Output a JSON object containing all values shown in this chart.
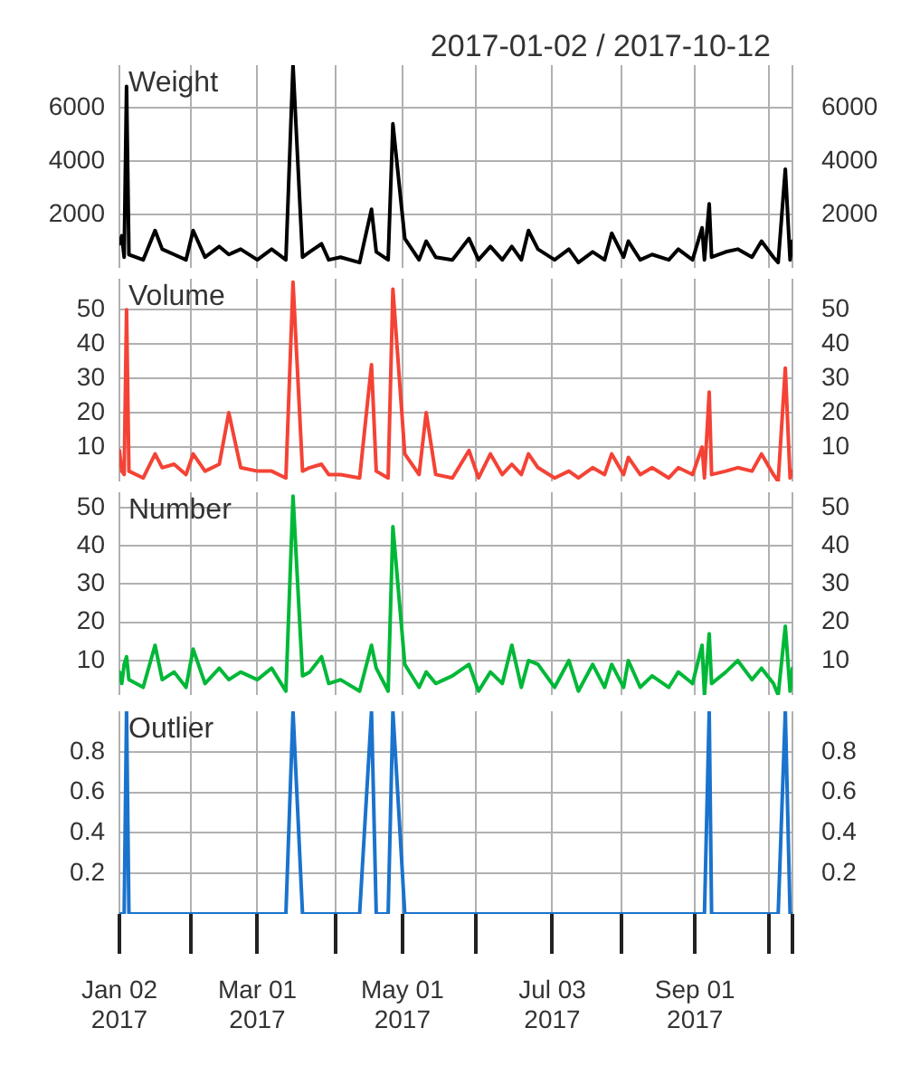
{
  "chart_data": [
    {
      "type": "line",
      "title": "2017-01-02 / 2017-10-12",
      "tick_labels": "y",
      "grid": true,
      "legend": false,
      "marker": "none",
      "x": [
        "2017-01-02",
        "2017-01-03",
        "2017-01-04",
        "2017-01-05",
        "2017-01-06",
        "2017-01-12",
        "2017-01-17",
        "2017-01-20",
        "2017-01-25",
        "2017-01-30",
        "2017-02-02",
        "2017-02-07",
        "2017-02-13",
        "2017-02-17",
        "2017-02-22",
        "2017-03-01",
        "2017-03-07",
        "2017-03-13",
        "2017-03-16",
        "2017-03-20",
        "2017-03-23",
        "2017-03-28",
        "2017-03-31",
        "2017-04-05",
        "2017-04-13",
        "2017-04-18",
        "2017-04-20",
        "2017-04-25",
        "2017-04-27",
        "2017-05-02",
        "2017-05-08",
        "2017-05-11",
        "2017-05-15",
        "2017-05-22",
        "2017-05-29",
        "2017-06-02",
        "2017-06-07",
        "2017-06-12",
        "2017-06-16",
        "2017-06-20",
        "2017-06-23",
        "2017-06-27",
        "2017-07-04",
        "2017-07-10",
        "2017-07-14",
        "2017-07-20",
        "2017-07-25",
        "2017-07-28",
        "2017-08-02",
        "2017-08-04",
        "2017-08-09",
        "2017-08-14",
        "2017-08-21",
        "2017-08-25",
        "2017-08-31",
        "2017-09-04",
        "2017-09-05",
        "2017-09-07",
        "2017-09-08",
        "2017-09-14",
        "2017-09-19",
        "2017-09-25",
        "2017-09-29",
        "2017-10-04",
        "2017-10-06",
        "2017-10-09",
        "2017-10-11",
        "2017-10-12"
      ],
      "series": [
        {
          "name": "Weight",
          "color": "#000000",
          "values": [
            900,
            1200,
            400,
            6800,
            500,
            300,
            1400,
            700,
            500,
            300,
            1400,
            400,
            800,
            500,
            700,
            300,
            700,
            300,
            7600,
            400,
            600,
            900,
            300,
            400,
            200,
            2200,
            600,
            300,
            5400,
            1100,
            300,
            1000,
            400,
            300,
            1100,
            300,
            800,
            300,
            800,
            300,
            1400,
            700,
            300,
            700,
            200,
            600,
            300,
            1300,
            400,
            1000,
            300,
            500,
            300,
            700,
            300,
            1500,
            300,
            2400,
            400,
            600,
            700,
            400,
            1000,
            400,
            200,
            3700,
            300,
            1000
          ]
        }
      ],
      "xlim": [
        "2017-01-02",
        "2017-10-12"
      ],
      "xticks": [
        {
          "value": "2017-01-02",
          "label": null
        },
        {
          "value": "2017-02-01",
          "label": null
        },
        {
          "value": "2017-03-01",
          "label": null
        },
        {
          "value": "2017-04-03",
          "label": null
        },
        {
          "value": "2017-05-01",
          "label": null
        },
        {
          "value": "2017-06-01",
          "label": null
        },
        {
          "value": "2017-07-03",
          "label": null
        },
        {
          "value": "2017-08-01",
          "label": null
        },
        {
          "value": "2017-09-01",
          "label": null
        },
        {
          "value": "2017-10-02",
          "label": null
        },
        {
          "value": "2017-10-12",
          "label": null
        }
      ],
      "ylim": [
        0,
        7600
      ],
      "yticks": [
        2000,
        4000,
        6000
      ],
      "y2lim": [
        0,
        7600
      ],
      "y2ticks": [
        2000,
        4000,
        6000
      ]
    },
    {
      "type": "line",
      "tick_labels": "y",
      "grid": true,
      "legend": false,
      "marker": "none",
      "x": [
        "2017-01-02",
        "2017-01-03",
        "2017-01-04",
        "2017-01-05",
        "2017-01-06",
        "2017-01-12",
        "2017-01-17",
        "2017-01-20",
        "2017-01-25",
        "2017-01-30",
        "2017-02-02",
        "2017-02-07",
        "2017-02-13",
        "2017-02-17",
        "2017-02-22",
        "2017-03-01",
        "2017-03-07",
        "2017-03-13",
        "2017-03-16",
        "2017-03-20",
        "2017-03-23",
        "2017-03-28",
        "2017-03-31",
        "2017-04-05",
        "2017-04-13",
        "2017-04-18",
        "2017-04-20",
        "2017-04-25",
        "2017-04-27",
        "2017-05-02",
        "2017-05-08",
        "2017-05-11",
        "2017-05-15",
        "2017-05-22",
        "2017-05-29",
        "2017-06-02",
        "2017-06-07",
        "2017-06-12",
        "2017-06-16",
        "2017-06-20",
        "2017-06-23",
        "2017-06-27",
        "2017-07-04",
        "2017-07-10",
        "2017-07-14",
        "2017-07-20",
        "2017-07-25",
        "2017-07-28",
        "2017-08-02",
        "2017-08-04",
        "2017-08-09",
        "2017-08-14",
        "2017-08-21",
        "2017-08-25",
        "2017-08-31",
        "2017-09-04",
        "2017-09-05",
        "2017-09-07",
        "2017-09-08",
        "2017-09-14",
        "2017-09-19",
        "2017-09-25",
        "2017-09-29",
        "2017-10-04",
        "2017-10-06",
        "2017-10-09",
        "2017-10-11",
        "2017-10-12"
      ],
      "series": [
        {
          "name": "Volume",
          "color": "#f44336",
          "values": [
            9,
            3,
            2,
            50,
            3,
            1,
            8,
            4,
            5,
            2,
            8,
            3,
            5,
            20,
            4,
            3,
            3,
            1,
            58,
            3,
            4,
            5,
            2,
            2,
            1,
            34,
            3,
            1,
            56,
            8,
            2,
            20,
            2,
            1,
            9,
            1,
            8,
            2,
            5,
            2,
            8,
            4,
            1,
            3,
            1,
            4,
            2,
            8,
            2,
            7,
            2,
            4,
            1,
            4,
            2,
            10,
            1,
            26,
            2,
            3,
            4,
            3,
            8,
            2,
            0,
            33,
            1,
            3
          ]
        }
      ],
      "xlim": [
        "2017-01-02",
        "2017-10-12"
      ],
      "xticks": [
        {
          "value": "2017-01-02",
          "label": null
        },
        {
          "value": "2017-02-01",
          "label": null
        },
        {
          "value": "2017-03-01",
          "label": null
        },
        {
          "value": "2017-04-03",
          "label": null
        },
        {
          "value": "2017-05-01",
          "label": null
        },
        {
          "value": "2017-06-01",
          "label": null
        },
        {
          "value": "2017-07-03",
          "label": null
        },
        {
          "value": "2017-08-01",
          "label": null
        },
        {
          "value": "2017-09-01",
          "label": null
        },
        {
          "value": "2017-10-02",
          "label": null
        },
        {
          "value": "2017-10-12",
          "label": null
        }
      ],
      "ylim": [
        0,
        59
      ],
      "yticks": [
        10,
        20,
        30,
        40,
        50
      ],
      "y2lim": [
        0,
        59
      ],
      "y2ticks": [
        10,
        20,
        30,
        40,
        50
      ]
    },
    {
      "type": "line",
      "tick_labels": "y",
      "grid": true,
      "legend": false,
      "marker": "none",
      "x": [
        "2017-01-02",
        "2017-01-03",
        "2017-01-04",
        "2017-01-05",
        "2017-01-06",
        "2017-01-12",
        "2017-01-17",
        "2017-01-20",
        "2017-01-25",
        "2017-01-30",
        "2017-02-02",
        "2017-02-07",
        "2017-02-13",
        "2017-02-17",
        "2017-02-22",
        "2017-03-01",
        "2017-03-07",
        "2017-03-13",
        "2017-03-16",
        "2017-03-20",
        "2017-03-23",
        "2017-03-28",
        "2017-03-31",
        "2017-04-05",
        "2017-04-13",
        "2017-04-18",
        "2017-04-20",
        "2017-04-25",
        "2017-04-27",
        "2017-05-02",
        "2017-05-08",
        "2017-05-11",
        "2017-05-15",
        "2017-05-22",
        "2017-05-29",
        "2017-06-02",
        "2017-06-07",
        "2017-06-12",
        "2017-06-16",
        "2017-06-20",
        "2017-06-23",
        "2017-06-27",
        "2017-07-04",
        "2017-07-10",
        "2017-07-14",
        "2017-07-20",
        "2017-07-25",
        "2017-07-28",
        "2017-08-02",
        "2017-08-04",
        "2017-08-09",
        "2017-08-14",
        "2017-08-21",
        "2017-08-25",
        "2017-08-31",
        "2017-09-04",
        "2017-09-05",
        "2017-09-07",
        "2017-09-08",
        "2017-09-14",
        "2017-09-19",
        "2017-09-25",
        "2017-09-29",
        "2017-10-04",
        "2017-10-06",
        "2017-10-09",
        "2017-10-11",
        "2017-10-12"
      ],
      "series": [
        {
          "name": "Number",
          "color": "#00b838",
          "values": [
            7,
            4,
            9,
            11,
            5,
            3,
            14,
            5,
            7,
            3,
            13,
            4,
            8,
            5,
            7,
            5,
            8,
            2,
            53,
            6,
            7,
            11,
            4,
            5,
            2,
            14,
            8,
            2,
            45,
            9,
            3,
            7,
            4,
            6,
            9,
            2,
            7,
            4,
            14,
            3,
            10,
            9,
            3,
            10,
            2,
            9,
            3,
            9,
            3,
            10,
            3,
            6,
            3,
            7,
            4,
            14,
            1,
            17,
            4,
            7,
            10,
            5,
            8,
            4,
            1,
            19,
            2,
            8
          ]
        }
      ],
      "xlim": [
        "2017-01-02",
        "2017-10-12"
      ],
      "xticks": [
        {
          "value": "2017-01-02",
          "label": null
        },
        {
          "value": "2017-02-01",
          "label": null
        },
        {
          "value": "2017-03-01",
          "label": null
        },
        {
          "value": "2017-04-03",
          "label": null
        },
        {
          "value": "2017-05-01",
          "label": null
        },
        {
          "value": "2017-06-01",
          "label": null
        },
        {
          "value": "2017-07-03",
          "label": null
        },
        {
          "value": "2017-08-01",
          "label": null
        },
        {
          "value": "2017-09-01",
          "label": null
        },
        {
          "value": "2017-10-02",
          "label": null
        },
        {
          "value": "2017-10-12",
          "label": null
        }
      ],
      "ylim": [
        1,
        54
      ],
      "yticks": [
        10,
        20,
        30,
        40,
        50
      ],
      "y2lim": [
        1,
        54
      ],
      "y2ticks": [
        10,
        20,
        30,
        40,
        50
      ]
    },
    {
      "type": "line",
      "grid": true,
      "legend": false,
      "marker": "none",
      "x": [
        "2017-01-02",
        "2017-01-03",
        "2017-01-04",
        "2017-01-05",
        "2017-01-06",
        "2017-01-12",
        "2017-01-17",
        "2017-01-20",
        "2017-01-25",
        "2017-01-30",
        "2017-02-02",
        "2017-02-07",
        "2017-02-13",
        "2017-02-17",
        "2017-02-22",
        "2017-03-01",
        "2017-03-07",
        "2017-03-13",
        "2017-03-16",
        "2017-03-20",
        "2017-03-23",
        "2017-03-28",
        "2017-03-31",
        "2017-04-05",
        "2017-04-13",
        "2017-04-18",
        "2017-04-20",
        "2017-04-25",
        "2017-04-27",
        "2017-05-02",
        "2017-05-08",
        "2017-05-11",
        "2017-05-15",
        "2017-05-22",
        "2017-05-29",
        "2017-06-02",
        "2017-06-07",
        "2017-06-12",
        "2017-06-16",
        "2017-06-20",
        "2017-06-23",
        "2017-06-27",
        "2017-07-04",
        "2017-07-10",
        "2017-07-14",
        "2017-07-20",
        "2017-07-25",
        "2017-07-28",
        "2017-08-02",
        "2017-08-04",
        "2017-08-09",
        "2017-08-14",
        "2017-08-21",
        "2017-08-25",
        "2017-08-31",
        "2017-09-04",
        "2017-09-05",
        "2017-09-07",
        "2017-09-08",
        "2017-09-14",
        "2017-09-19",
        "2017-09-25",
        "2017-09-29",
        "2017-10-04",
        "2017-10-06",
        "2017-10-09",
        "2017-10-11",
        "2017-10-12"
      ],
      "series": [
        {
          "name": "Outlier",
          "color": "#1a73cc",
          "values": [
            0,
            0,
            0,
            1,
            0,
            0,
            0,
            0,
            0,
            0,
            0,
            0,
            0,
            0,
            0,
            0,
            0,
            0,
            1,
            0,
            0,
            0,
            0,
            0,
            0,
            1,
            0,
            0,
            1,
            0,
            0,
            0,
            0,
            0,
            0,
            0,
            0,
            0,
            0,
            0,
            0,
            0,
            0,
            0,
            0,
            0,
            0,
            0,
            0,
            0,
            0,
            0,
            0,
            0,
            0,
            0,
            0,
            1,
            0,
            0,
            0,
            0,
            0,
            0,
            0,
            1,
            0,
            0
          ]
        }
      ],
      "xlim": [
        "2017-01-02",
        "2017-10-12"
      ],
      "xticks": [
        {
          "value": "2017-01-02",
          "label": "Jan 02\n2017"
        },
        {
          "value": "2017-02-01",
          "label": null
        },
        {
          "value": "2017-03-01",
          "label": "Mar 01\n2017"
        },
        {
          "value": "2017-04-03",
          "label": null
        },
        {
          "value": "2017-05-01",
          "label": "May 01\n2017"
        },
        {
          "value": "2017-06-01",
          "label": null
        },
        {
          "value": "2017-07-03",
          "label": "Jul 03\n2017"
        },
        {
          "value": "2017-08-01",
          "label": null
        },
        {
          "value": "2017-09-01",
          "label": "Sep 01\n2017"
        },
        {
          "value": "2017-10-02",
          "label": null
        },
        {
          "value": "2017-10-12",
          "label": null
        }
      ],
      "ylim": [
        0,
        1
      ],
      "yticks": [
        0.2,
        0.4,
        0.6,
        0.8
      ],
      "y2lim": [
        0,
        1
      ],
      "y2ticks": [
        0.2,
        0.4,
        0.6,
        0.8
      ]
    }
  ]
}
